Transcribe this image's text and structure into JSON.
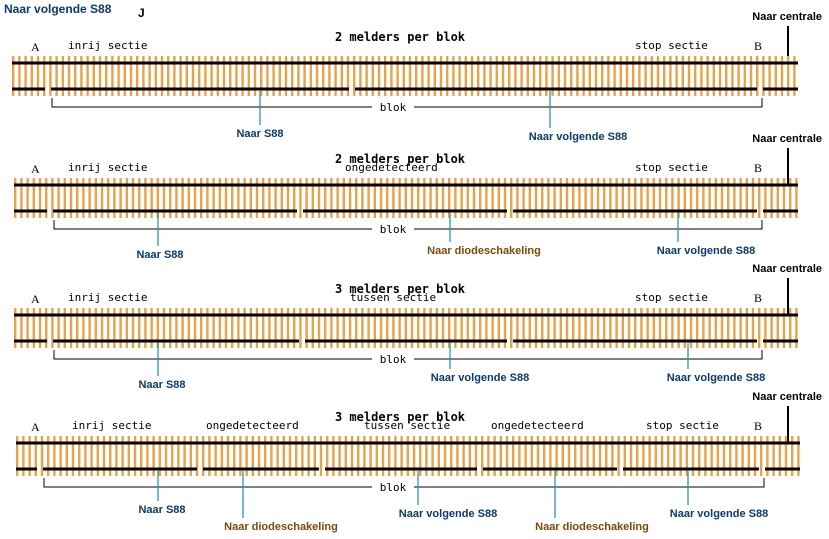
{
  "colors": {
    "sleeper": "#E8A24A",
    "rail": "#000000",
    "wire": "#1B8FB0",
    "link_s88": "#0B3A6B",
    "link_diode": "#7A4A0A",
    "text": "#000000"
  },
  "top_note": {
    "label": "Naar  volgende S88",
    "mark": "J"
  },
  "diagrams": [
    {
      "title": "2 melders per blok",
      "centrale": "Naar centrale",
      "end_a": "A",
      "end_b": "B",
      "sections": [
        "inrij sectie",
        "stop sectie"
      ],
      "blok": "blok",
      "wires": [
        {
          "label": "Naar S88",
          "kind": "s88"
        },
        {
          "label": "Naar  volgende S88",
          "kind": "s88"
        }
      ]
    },
    {
      "title": "2 melders per blok",
      "centrale": "Naar centrale",
      "end_a": "A",
      "end_b": "B",
      "sections": [
        "inrij sectie",
        "ongedetecteerd",
        "stop sectie"
      ],
      "blok": "blok",
      "wires": [
        {
          "label": "Naar S88",
          "kind": "s88"
        },
        {
          "label": "Naar diodeschakeling",
          "kind": "diode"
        },
        {
          "label": "Naar  volgende S88",
          "kind": "s88"
        }
      ]
    },
    {
      "title": "3 melders per blok",
      "centrale": "Naar centrale",
      "end_a": "A",
      "end_b": "B",
      "sections": [
        "inrij sectie",
        "tussen sectie",
        "stop sectie"
      ],
      "blok": "blok",
      "wires": [
        {
          "label": "Naar S88",
          "kind": "s88"
        },
        {
          "label": "Naar  volgende S88",
          "kind": "s88"
        },
        {
          "label": "Naar  volgende S88",
          "kind": "s88"
        }
      ]
    },
    {
      "title": "3 melders per blok",
      "centrale": "Naar centrale",
      "end_a": "A",
      "end_b": "B",
      "sections": [
        "inrij sectie",
        "ongedetecteerd",
        "tussen sectie",
        "ongedetecteerd",
        "stop sectie"
      ],
      "blok": "blok",
      "wires": [
        {
          "label": "Naar S88",
          "kind": "s88"
        },
        {
          "label": "Naar diodeschakeling",
          "kind": "diode"
        },
        {
          "label": "Naar  volgende S88",
          "kind": "s88"
        },
        {
          "label": "Naar diodeschakeling",
          "kind": "diode"
        },
        {
          "label": "Naar  volgende S88",
          "kind": "s88"
        }
      ]
    }
  ]
}
